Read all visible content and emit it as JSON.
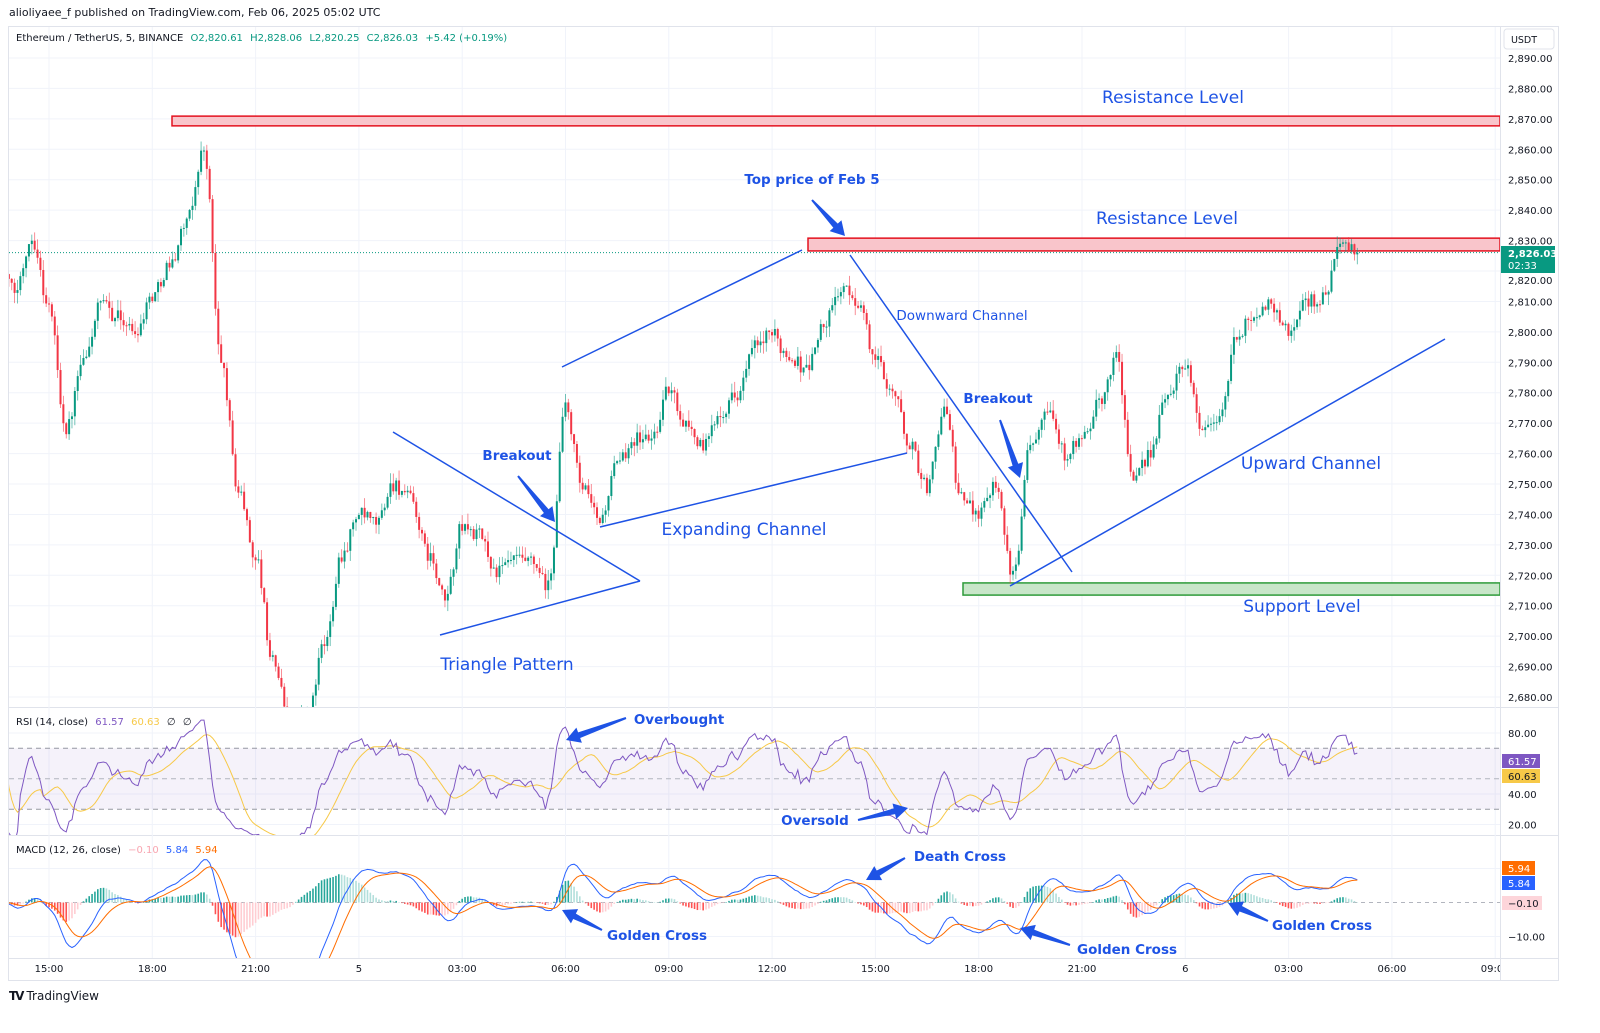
{
  "publisher_line": "alioliyaee_f published on TradingView.com, Feb 06, 2025 05:02 UTC",
  "legend": {
    "symbol": "Ethereum / TetherUS, 5, BINANCE",
    "open": "O2,820.61",
    "high": "H2,828.06",
    "low": "L2,820.25",
    "close": "C2,826.03",
    "change": "+5.42 (+0.19%)"
  },
  "currency": "USDT",
  "current_price": {
    "price": "2,826.03",
    "countdown": "02:33",
    "color": "#089981"
  },
  "price_axis_labels": [
    "2,890.00",
    "2,880.00",
    "2,870.00",
    "2,860.00",
    "2,850.00",
    "2,840.00",
    "2,830.00",
    "2,820.00",
    "2,810.00",
    "2,800.00",
    "2,790.00",
    "2,780.00",
    "2,770.00",
    "2,760.00",
    "2,750.00",
    "2,740.00",
    "2,730.00",
    "2,720.00",
    "2,710.00",
    "2,700.00",
    "2,690.00",
    "2,680.00"
  ],
  "time_axis_labels": [
    "15:00",
    "18:00",
    "21:00",
    "5",
    "03:00",
    "06:00",
    "09:00",
    "12:00",
    "15:00",
    "18:00",
    "21:00",
    "6",
    "03:00",
    "06:00",
    "09:00"
  ],
  "rsi": {
    "label": "RSI (14, close)",
    "value": "61.57",
    "ma_value": "60.63",
    "extra1": "∅",
    "extra2": "∅",
    "axis_labels": [
      "80.00",
      "40.00",
      "20.00"
    ],
    "color": "#7e57c2",
    "ma_color": "#f7c948"
  },
  "macd": {
    "label": "MACD (12, 26, close)",
    "histogram": "−0.10",
    "macd": "5.84",
    "signal": "5.94",
    "axis_labels": [
      "−10.00"
    ],
    "macd_color": "#2962ff",
    "signal_color": "#ff6d00",
    "hist_color": "#f8a5b0"
  },
  "annotations": {
    "resistance_1": "Resistance Level",
    "resistance_2": "Resistance Level",
    "top_price": "Top price of Feb 5",
    "downward_channel": "Downward Channel",
    "breakout_1": "Breakout",
    "breakout_2": "Breakout",
    "expanding_channel": "Expanding Channel",
    "triangle_pattern": "Triangle Pattern",
    "upward_channel": "Upward Channel",
    "support_level": "Support Level",
    "overbought": "Overbought",
    "oversold": "Oversold",
    "death_cross": "Death Cross",
    "golden_cross_1": "Golden Cross",
    "golden_cross_2": "Golden Cross",
    "golden_cross_3": "Golden Cross"
  },
  "logo_text": "TradingView",
  "colors": {
    "up": "#089981",
    "down": "#f23645",
    "annotation": "#1e53e5",
    "resistance_fill": "#f9c5cb",
    "resistance_border": "#e3121f",
    "support_fill": "#c8e6c9",
    "support_border": "#2e9b3a"
  },
  "chart_data": {
    "type": "candlestick",
    "symbol": "ETH/USDT",
    "timeframe": "5",
    "approx_close_path": {
      "start": "Feb 04 14:00",
      "interval": "30m",
      "closes": [
        2813,
        2831,
        2808,
        2768,
        2790,
        2809,
        2805,
        2800,
        2812,
        2822,
        2836,
        2860,
        2790,
        2748,
        2726,
        2692,
        2672,
        2674,
        2697,
        2727,
        2740,
        2737,
        2750,
        2745,
        2727,
        2712,
        2736,
        2733,
        2721,
        2725,
        2724,
        2716,
        2775,
        2748,
        2738,
        2756,
        2765,
        2765,
        2781,
        2770,
        2762,
        2774,
        2780,
        2795,
        2799,
        2792,
        2788,
        2802,
        2814,
        2810,
        2791,
        2781,
        2763,
        2749,
        2775,
        2745,
        2741,
        2751,
        2719,
        2764,
        2776,
        2760,
        2764,
        2776,
        2792,
        2750,
        2761,
        2780,
        2790,
        2768,
        2772,
        2798,
        2806,
        2809,
        2800,
        2810,
        2811,
        2828,
        2826.03
      ]
    },
    "ylim": [
      2675,
      2895
    ],
    "zones": [
      {
        "label": "Resistance Level",
        "low": 2867.7,
        "high": 2870.9
      },
      {
        "label": "Resistance Level",
        "low": 2826.6,
        "high": 2830.8
      },
      {
        "label": "Support Level",
        "low": 2713.5,
        "high": 2717.5
      }
    ],
    "grid": true
  }
}
